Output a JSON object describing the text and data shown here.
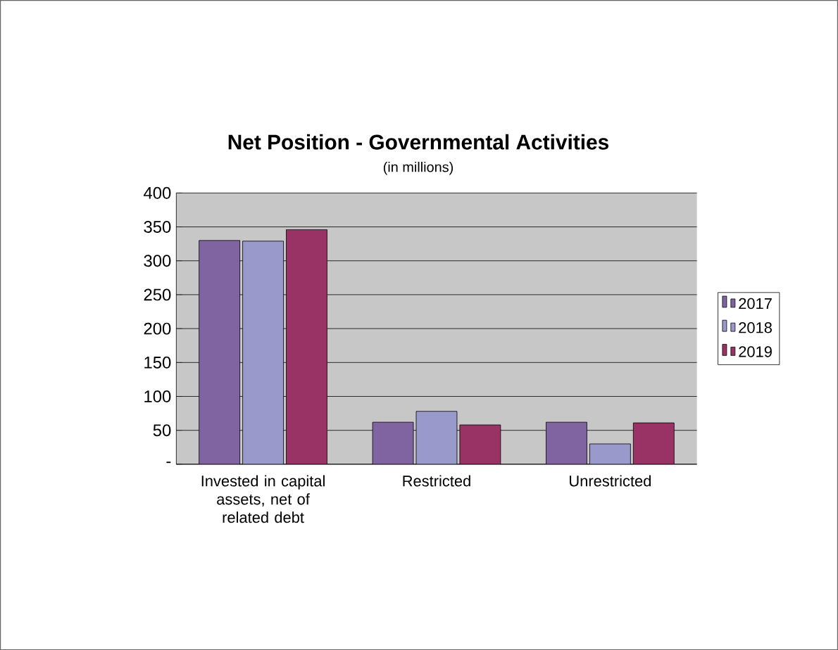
{
  "chart_data": {
    "type": "bar",
    "title": "Net Position - Governmental Activities",
    "subtitle": "(in millions)",
    "categories": [
      "Invested in capital assets, net of related debt",
      "Restricted",
      "Unrestricted"
    ],
    "series": [
      {
        "name": "2017",
        "color": "#8064a2",
        "values": [
          330,
          62,
          62
        ]
      },
      {
        "name": "2018",
        "color": "#9999cc",
        "values": [
          329,
          78,
          30
        ]
      },
      {
        "name": "2019",
        "color": "#993366",
        "values": [
          346,
          58,
          61
        ]
      }
    ],
    "ylim": [
      0,
      400
    ],
    "yticks": [
      {
        "value": 0,
        "label": "-"
      },
      50,
      100,
      150,
      200,
      250,
      300,
      350,
      400
    ],
    "grid": "y",
    "legend": "right"
  }
}
